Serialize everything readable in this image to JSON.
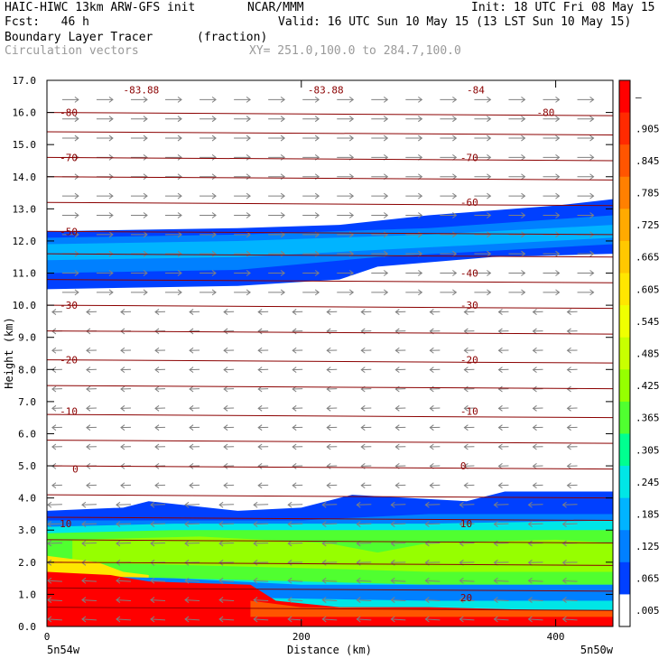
{
  "header": {
    "model": "HAIC-HIWC 13km ARW-GFS init",
    "center": "NCAR/MMM",
    "init": "Init: 18 UTC Fri 08 May 15",
    "fcst": "Fcst:   46 h",
    "valid": "Valid: 16 UTC Sun 10 May 15 (13 LST Sun 10 May 15)",
    "field": "Boundary Layer Tracer",
    "units": "(fraction)",
    "vectors": "Circulation vectors",
    "xy": "XY= 251.0,100.0 to 284.7,100.0"
  },
  "chart_data": {
    "type": "heatmap",
    "title": "Boundary Layer Tracer",
    "xlabel": "Distance (km)",
    "ylabel": "Height (km)",
    "xlim": [
      0,
      445
    ],
    "ylim": [
      0,
      17
    ],
    "x_ticks": [
      "0",
      "200",
      "400"
    ],
    "x_tick_values": [
      0,
      200,
      400
    ],
    "x_end_labels": {
      "left": "5n54w",
      "right": "5n50w"
    },
    "y_ticks": [
      "0.0",
      "1.0",
      "2.0",
      "3.0",
      "4.0",
      "5.0",
      "6.0",
      "7.0",
      "8.0",
      "9.0",
      "10.0",
      "11.0",
      "12.0",
      "13.0",
      "14.0",
      "15.0",
      "16.0",
      "17.0"
    ],
    "colorbar": {
      "labels": [
        "–",
        ".905",
        ".845",
        ".785",
        ".725",
        ".665",
        ".605",
        ".545",
        ".485",
        ".425",
        ".365",
        ".305",
        ".245",
        ".185",
        ".125",
        ".065",
        ".005"
      ],
      "colors": [
        "#ff0000",
        "#ff2a00",
        "#ff5500",
        "#ff8000",
        "#ffaa00",
        "#ffc800",
        "#ffe600",
        "#f0ff00",
        "#c8ff00",
        "#96ff00",
        "#50ff30",
        "#00ff90",
        "#00e6e6",
        "#00b4ff",
        "#0080ff",
        "#0040ff",
        "#ffffff"
      ]
    },
    "temperature_contours": [
      {
        "label": "-83.88"
      },
      {
        "label": "-83.88"
      },
      {
        "label": "-84"
      },
      {
        "label": "-80"
      },
      {
        "label": "-80"
      },
      {
        "label": "-70"
      },
      {
        "label": "-70"
      },
      {
        "label": "-60"
      },
      {
        "label": "-50"
      },
      {
        "label": "-40"
      },
      {
        "label": "-30"
      },
      {
        "label": "-30"
      },
      {
        "label": "-20"
      },
      {
        "label": "-20"
      },
      {
        "label": "-10"
      },
      {
        "label": "-10"
      },
      {
        "label": "0"
      },
      {
        "label": "0"
      },
      {
        "label": "10"
      },
      {
        "label": "10"
      },
      {
        "label": "20"
      }
    ],
    "contour_color": "#8b0000",
    "vector_color": "#808080"
  }
}
